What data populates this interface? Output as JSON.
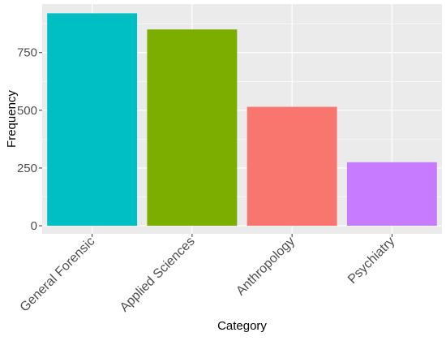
{
  "chart_data": {
    "type": "bar",
    "categories": [
      "General Forensic",
      "Applied Sciences",
      "Anthropology",
      "Psychiatry"
    ],
    "values": [
      920,
      850,
      515,
      275
    ],
    "colors": [
      "#00BFC4",
      "#7CAE00",
      "#F8766D",
      "#C77CFF"
    ],
    "xlabel": "Category",
    "ylabel": "Frequency",
    "ylim": [
      -35,
      960
    ],
    "yticks": [
      0,
      250,
      500,
      750
    ],
    "ytick_labels": [
      "0",
      "250",
      "500",
      "750"
    ],
    "grid": true,
    "legend": "none",
    "panel_background": "#EBEBEB",
    "grid_color": "#FFFFFF"
  }
}
